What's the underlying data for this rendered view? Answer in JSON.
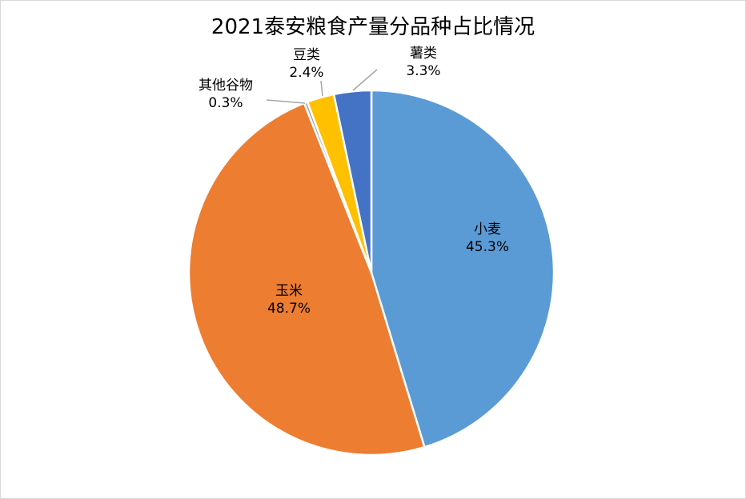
{
  "chart_data": {
    "type": "pie",
    "title": "2021泰安粮食产量分品种占比情况",
    "slices": [
      {
        "name": "小麦",
        "label": "45.3%",
        "value": 45.3,
        "color": "#5B9BD5"
      },
      {
        "name": "玉米",
        "label": "48.7%",
        "value": 48.7,
        "color": "#ED7D31"
      },
      {
        "name": "其他谷物",
        "label": "0.3%",
        "value": 0.3,
        "color": "#A5A5A5"
      },
      {
        "name": "豆类",
        "label": "2.4%",
        "value": 2.4,
        "color": "#FFC000"
      },
      {
        "name": "薯类",
        "label": "3.3%",
        "value": 3.3,
        "color": "#4472C4"
      }
    ],
    "start": "top",
    "direction": "clockwise",
    "legend": "none"
  }
}
